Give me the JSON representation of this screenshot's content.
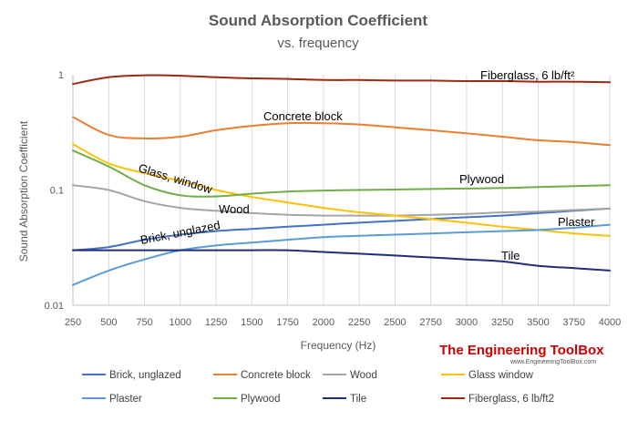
{
  "chart_data": {
    "type": "line",
    "title": "Sound Absorption Coefficient",
    "subtitle": "vs. frequency",
    "xlabel": "Frequency (Hz)",
    "ylabel": "Sound Absorption Coefficient",
    "xlim": [
      250,
      4000
    ],
    "ylim": [
      0.01,
      1
    ],
    "yscale": "log",
    "xticks": [
      250,
      500,
      750,
      1000,
      1250,
      1500,
      1750,
      2000,
      2250,
      2500,
      2750,
      3000,
      3250,
      3500,
      3750,
      4000
    ],
    "yticks": [
      {
        "value": 0.01,
        "label": "0.01"
      },
      {
        "value": 0.1,
        "label": "0.1"
      },
      {
        "value": 1,
        "label": "1"
      }
    ],
    "grid": "vertical",
    "legend": "bottom",
    "x": [
      250,
      500,
      750,
      1000,
      1250,
      1500,
      1750,
      2000,
      2250,
      2500,
      2750,
      3000,
      3250,
      3500,
      3750,
      4000
    ],
    "series": [
      {
        "name": "Brick, unglazed",
        "color": "#4472c4",
        "label": "Brick, unglazed",
        "values": [
          0.03,
          0.032,
          0.037,
          0.041,
          0.044,
          0.046,
          0.048,
          0.05,
          0.052,
          0.054,
          0.056,
          0.058,
          0.06,
          0.063,
          0.066,
          0.069
        ]
      },
      {
        "name": "Concrete block",
        "color": "#ed7d31",
        "label": "Concrete block",
        "values": [
          0.43,
          0.3,
          0.28,
          0.29,
          0.33,
          0.36,
          0.38,
          0.38,
          0.37,
          0.35,
          0.33,
          0.31,
          0.29,
          0.27,
          0.26,
          0.245
        ]
      },
      {
        "name": "Wood",
        "color": "#a5a5a5",
        "label": "Wood",
        "values": [
          0.11,
          0.1,
          0.08,
          0.07,
          0.066,
          0.063,
          0.061,
          0.06,
          0.06,
          0.06,
          0.061,
          0.062,
          0.064,
          0.065,
          0.067,
          0.069
        ]
      },
      {
        "name": "Glass window",
        "color": "#ffc000",
        "label": "Glass, window",
        "values": [
          0.25,
          0.17,
          0.14,
          0.12,
          0.1,
          0.087,
          0.078,
          0.07,
          0.064,
          0.06,
          0.056,
          0.052,
          0.048,
          0.045,
          0.042,
          0.04
        ]
      },
      {
        "name": "Plaster",
        "color": "#5b9bd5",
        "label": "Plaster",
        "values": [
          0.015,
          0.02,
          0.025,
          0.03,
          0.033,
          0.035,
          0.037,
          0.039,
          0.04,
          0.041,
          0.042,
          0.043,
          0.044,
          0.045,
          0.047,
          0.05
        ]
      },
      {
        "name": "Plywood",
        "color": "#70ad47",
        "label": "Plywood",
        "values": [
          0.22,
          0.16,
          0.11,
          0.09,
          0.088,
          0.093,
          0.097,
          0.099,
          0.1,
          0.101,
          0.102,
          0.103,
          0.104,
          0.106,
          0.108,
          0.11
        ]
      },
      {
        "name": "Tile",
        "color": "#1f2e7a",
        "label": "Tile",
        "values": [
          0.03,
          0.03,
          0.03,
          0.03,
          0.03,
          0.03,
          0.03,
          0.029,
          0.028,
          0.027,
          0.026,
          0.025,
          0.024,
          0.022,
          0.021,
          0.02
        ]
      },
      {
        "name": "Fiberglass, 6 lb/ft2",
        "color": "#9e2a12",
        "label": "Fiberglass, 6 lb/ft²",
        "values": [
          0.83,
          0.95,
          0.99,
          0.98,
          0.95,
          0.93,
          0.92,
          0.9,
          0.9,
          0.89,
          0.89,
          0.88,
          0.88,
          0.87,
          0.87,
          0.86
        ]
      }
    ]
  },
  "branding": {
    "name": "The Engineering ToolBox",
    "url": "www.EngineeringToolBox.com"
  }
}
